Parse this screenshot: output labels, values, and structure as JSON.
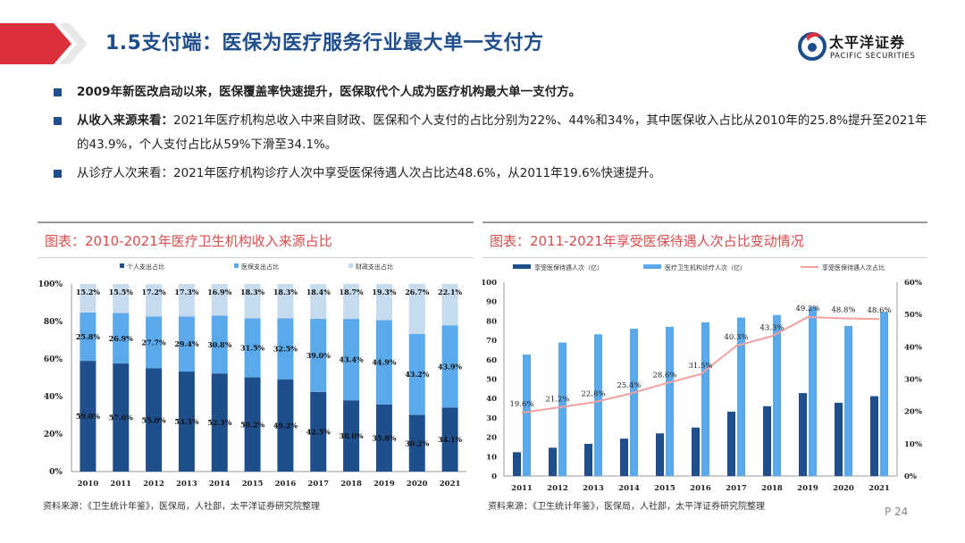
{
  "header": {
    "title": "1.5支付端：医保为医疗服务行业最大单一支付方",
    "logo_cn": "太平洋证券",
    "logo_en": "PACIFIC SECURITIES"
  },
  "bullets": [
    {
      "bold": "2009年新医改启动以来，医保覆盖率快速提升，医保取代个人成为医疗机构最大单一支付方。",
      "text": ""
    },
    {
      "bold": "从收入来源来看：",
      "text": "2021年医疗机构总收入中来自财政、医保和个人支付的占比分别为22%、44%和34%，其中医保收入占比从2010年的25.8%提升至2021年的43.9%，个人支付占比从59%下滑至34.1%。"
    },
    {
      "bold": "",
      "text": "从诊疗人次来看：2021年医疗机构诊疗人次中享受医保待遇人次占比达48.6%，从2011年19.6%快速提升。"
    }
  ],
  "panel_left": {
    "title": "图表：2010-2021年医疗卫生机构收入来源占比",
    "source": "资料来源：《卫生统计年鉴》，医保局，人社部，太平洋证券研究院整理"
  },
  "panel_right": {
    "title": "图表：2011-2021年享受医保待遇人次占比变动情况",
    "source": "资料来源：《卫生统计年鉴》，医保局，人社部，太平洋证券研究院整理"
  },
  "page_number": "P 24",
  "colors": {
    "dark_blue": "#1f4e8c",
    "mid_blue": "#5aa9ea",
    "light_blue": "#c7dbee",
    "line_pink": "#f2a0a0",
    "title_red": "#d84c4c"
  },
  "chart_data": [
    {
      "type": "bar",
      "stacked": true,
      "categories": [
        "2010",
        "2011",
        "2012",
        "2013",
        "2014",
        "2015",
        "2016",
        "2017",
        "2018",
        "2019",
        "2020",
        "2021"
      ],
      "series": [
        {
          "name": "个人支出占比",
          "values": [
            59.0,
            57.6,
            55.0,
            53.3,
            52.3,
            50.2,
            49.2,
            42.5,
            38.0,
            35.8,
            30.2,
            34.1
          ],
          "labels": [
            "59.0%",
            "57.6%",
            "55.0%",
            "53.3%",
            "52.3%",
            "50.2%",
            "49.2%",
            "42.5%",
            "38.0%",
            "35.8%",
            "30.2%",
            "34.1%"
          ]
        },
        {
          "name": "医保支出占比",
          "values": [
            25.8,
            26.9,
            27.7,
            29.4,
            30.8,
            31.5,
            32.5,
            39.0,
            43.4,
            44.9,
            43.2,
            43.9
          ],
          "labels": [
            "25.8%",
            "26.9%",
            "27.7%",
            "29.4%",
            "30.8%",
            "31.5%",
            "32.5%",
            "39.0%",
            "43.4%",
            "44.9%",
            "43.2%",
            "43.9%"
          ]
        },
        {
          "name": "财政支出占比",
          "values": [
            15.2,
            15.5,
            17.2,
            17.3,
            16.9,
            18.3,
            18.3,
            18.4,
            18.7,
            19.3,
            26.7,
            22.1
          ],
          "labels": [
            "15.2%",
            "15.5%",
            "17.2%",
            "17.3%",
            "16.9%",
            "18.3%",
            "18.3%",
            "18.4%",
            "18.7%",
            "19.3%",
            "26.7%",
            "22.1%"
          ]
        }
      ],
      "ylim": [
        0,
        100
      ],
      "yticks": [
        "0%",
        "20%",
        "40%",
        "60%",
        "80%",
        "100%"
      ],
      "legend": "top"
    },
    {
      "type": "bar+line",
      "categories": [
        "2011",
        "2012",
        "2013",
        "2014",
        "2015",
        "2016",
        "2017",
        "2018",
        "2019",
        "2020",
        "2021"
      ],
      "series": [
        {
          "name": "享受医保待遇人次（亿）",
          "type": "bar",
          "axis": "left",
          "values": [
            12.3,
            14.6,
            16.6,
            19.3,
            22.0,
            25.0,
            33.2,
            36.0,
            42.8,
            37.8,
            41.2
          ]
        },
        {
          "name": "医疗卫生机构诊疗人次（亿）",
          "type": "bar",
          "axis": "left",
          "values": [
            62.7,
            68.9,
            73.1,
            76.0,
            77.0,
            79.3,
            81.8,
            83.1,
            87.2,
            77.4,
            84.7
          ]
        },
        {
          "name": "享受医保待遇人次占比",
          "type": "line",
          "axis": "right",
          "values": [
            19.6,
            21.2,
            22.8,
            25.4,
            28.6,
            31.5,
            40.3,
            43.3,
            49.2,
            48.8,
            48.6
          ],
          "labels": [
            "19.6%",
            "21.2%",
            "22.8%",
            "25.4%",
            "28.6%",
            "31.5%",
            "40.3%",
            "43.3%",
            "49.2%",
            "48.8%",
            "48.6%"
          ]
        }
      ],
      "ylim_left": [
        0,
        100
      ],
      "yticks_left": [
        "0",
        "10",
        "20",
        "30",
        "40",
        "50",
        "60",
        "70",
        "80",
        "90",
        "100"
      ],
      "ylim_right": [
        0,
        60
      ],
      "yticks_right": [
        "0%",
        "10%",
        "20%",
        "30%",
        "40%",
        "50%",
        "60%"
      ],
      "legend": "top"
    }
  ]
}
